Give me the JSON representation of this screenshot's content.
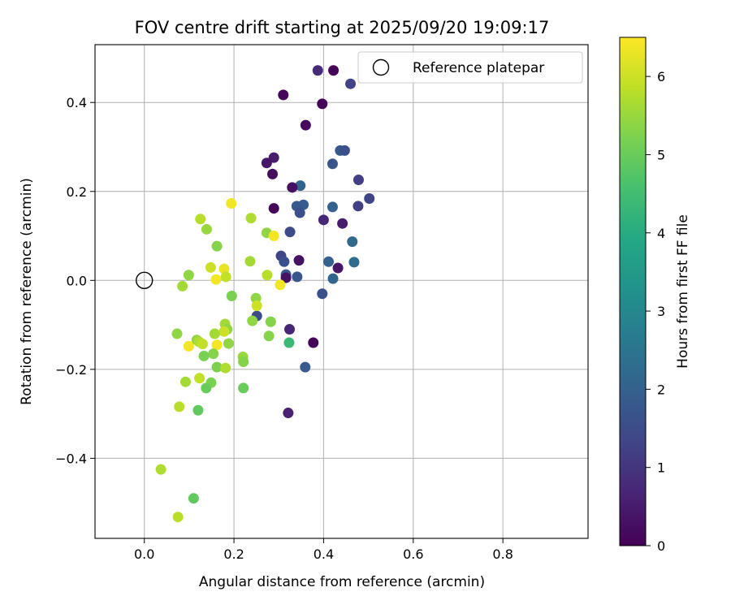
{
  "chart_data": {
    "type": "scatter",
    "title": "FOV centre drift starting at 2025/09/20 19:09:17",
    "xlabel": "Angular distance from reference (arcmin)",
    "ylabel": "Rotation from reference (arcmin)",
    "xlim": [
      -0.11,
      0.99
    ],
    "ylim": [
      -0.58,
      0.53
    ],
    "x_ticks": [
      0.0,
      0.2,
      0.4,
      0.6,
      0.8
    ],
    "x_tick_labels": [
      "0.0",
      "0.2",
      "0.4",
      "0.6",
      "0.8"
    ],
    "y_ticks": [
      -0.4,
      -0.2,
      0.0,
      0.2,
      0.4
    ],
    "y_tick_labels": [
      "−0.4",
      "−0.2",
      "0.0",
      "0.2",
      "0.4"
    ],
    "grid": true,
    "legend": {
      "location": "top-right",
      "entries": [
        {
          "label": "Reference platepar",
          "marker": "open-circle"
        }
      ]
    },
    "reference_point": {
      "x": 0.0,
      "y": 0.0
    },
    "colorbar": {
      "label": "Hours from first FF file",
      "cmap": "viridis",
      "range": [
        0,
        6.5
      ],
      "ticks": [
        0,
        1,
        2,
        3,
        4,
        5,
        6
      ],
      "tick_labels": [
        "0",
        "1",
        "2",
        "3",
        "4",
        "5",
        "6"
      ]
    },
    "points": [
      {
        "x": 0.422,
        "y": 0.472,
        "c": 0.1
      },
      {
        "x": 0.387,
        "y": 0.472,
        "c": 0.8
      },
      {
        "x": 0.46,
        "y": 0.442,
        "c": 1.3
      },
      {
        "x": 0.31,
        "y": 0.417,
        "c": 0.1
      },
      {
        "x": 0.397,
        "y": 0.397,
        "c": 0.1
      },
      {
        "x": 0.36,
        "y": 0.349,
        "c": 0.2
      },
      {
        "x": 0.437,
        "y": 0.292,
        "c": 1.8
      },
      {
        "x": 0.447,
        "y": 0.292,
        "c": 1.6
      },
      {
        "x": 0.289,
        "y": 0.276,
        "c": 0.5
      },
      {
        "x": 0.273,
        "y": 0.264,
        "c": 0.4
      },
      {
        "x": 0.42,
        "y": 0.262,
        "c": 1.7
      },
      {
        "x": 0.286,
        "y": 0.239,
        "c": 0.2
      },
      {
        "x": 0.478,
        "y": 0.226,
        "c": 1.2
      },
      {
        "x": 0.348,
        "y": 0.213,
        "c": 2.1
      },
      {
        "x": 0.33,
        "y": 0.209,
        "c": 0.3
      },
      {
        "x": 0.502,
        "y": 0.184,
        "c": 1.3
      },
      {
        "x": 0.355,
        "y": 0.17,
        "c": 1.9
      },
      {
        "x": 0.34,
        "y": 0.167,
        "c": 1.8
      },
      {
        "x": 0.477,
        "y": 0.167,
        "c": 1.2
      },
      {
        "x": 0.42,
        "y": 0.165,
        "c": 2.0
      },
      {
        "x": 0.289,
        "y": 0.162,
        "c": 0.1
      },
      {
        "x": 0.347,
        "y": 0.152,
        "c": 1.6
      },
      {
        "x": 0.4,
        "y": 0.136,
        "c": 0.7
      },
      {
        "x": 0.442,
        "y": 0.128,
        "c": 0.5
      },
      {
        "x": 0.325,
        "y": 0.109,
        "c": 1.5
      },
      {
        "x": 0.464,
        "y": 0.087,
        "c": 2.2
      },
      {
        "x": 0.305,
        "y": 0.055,
        "c": 1.3
      },
      {
        "x": 0.345,
        "y": 0.045,
        "c": 0.3
      },
      {
        "x": 0.411,
        "y": 0.042,
        "c": 2.0
      },
      {
        "x": 0.468,
        "y": 0.041,
        "c": 2.3
      },
      {
        "x": 0.312,
        "y": 0.042,
        "c": 1.6
      },
      {
        "x": 0.432,
        "y": 0.028,
        "c": 0.4
      },
      {
        "x": 0.316,
        "y": 0.013,
        "c": 1.8
      },
      {
        "x": 0.341,
        "y": 0.008,
        "c": 1.7
      },
      {
        "x": 0.421,
        "y": 0.004,
        "c": 2.1
      },
      {
        "x": 0.316,
        "y": 0.006,
        "c": 0.3
      },
      {
        "x": 0.397,
        "y": -0.03,
        "c": 1.6
      },
      {
        "x": 0.251,
        "y": -0.08,
        "c": 1.5
      },
      {
        "x": 0.324,
        "y": -0.11,
        "c": 0.7
      },
      {
        "x": 0.377,
        "y": -0.14,
        "c": 0.1
      },
      {
        "x": 0.359,
        "y": -0.195,
        "c": 1.8
      },
      {
        "x": 0.321,
        "y": -0.298,
        "c": 0.6
      },
      {
        "x": 0.194,
        "y": 0.173,
        "c": 6.4
      },
      {
        "x": 0.125,
        "y": 0.138,
        "c": 5.8
      },
      {
        "x": 0.238,
        "y": 0.14,
        "c": 5.7
      },
      {
        "x": 0.139,
        "y": 0.115,
        "c": 5.5
      },
      {
        "x": 0.273,
        "y": 0.107,
        "c": 5.4
      },
      {
        "x": 0.289,
        "y": 0.1,
        "c": 6.4
      },
      {
        "x": 0.162,
        "y": 0.077,
        "c": 5.3
      },
      {
        "x": 0.236,
        "y": 0.043,
        "c": 5.6
      },
      {
        "x": 0.148,
        "y": 0.029,
        "c": 6.0
      },
      {
        "x": 0.178,
        "y": 0.026,
        "c": 6.3
      },
      {
        "x": 0.099,
        "y": 0.012,
        "c": 5.4
      },
      {
        "x": 0.274,
        "y": 0.012,
        "c": 5.8
      },
      {
        "x": 0.182,
        "y": 0.008,
        "c": 5.9
      },
      {
        "x": 0.16,
        "y": 0.002,
        "c": 6.4
      },
      {
        "x": 0.303,
        "y": -0.01,
        "c": 6.4
      },
      {
        "x": 0.085,
        "y": -0.013,
        "c": 5.6
      },
      {
        "x": 0.195,
        "y": -0.035,
        "c": 5.2
      },
      {
        "x": 0.249,
        "y": -0.04,
        "c": 5.4
      },
      {
        "x": 0.251,
        "y": -0.057,
        "c": 6.0
      },
      {
        "x": 0.241,
        "y": -0.091,
        "c": 5.4
      },
      {
        "x": 0.282,
        "y": -0.093,
        "c": 5.3
      },
      {
        "x": 0.18,
        "y": -0.098,
        "c": 5.6
      },
      {
        "x": 0.185,
        "y": -0.11,
        "c": 5.4
      },
      {
        "x": 0.178,
        "y": -0.115,
        "c": 6.0
      },
      {
        "x": 0.073,
        "y": -0.12,
        "c": 5.4
      },
      {
        "x": 0.157,
        "y": -0.12,
        "c": 5.6
      },
      {
        "x": 0.278,
        "y": -0.125,
        "c": 5.3
      },
      {
        "x": 0.117,
        "y": -0.134,
        "c": 5.4
      },
      {
        "x": 0.122,
        "y": -0.138,
        "c": 5.7
      },
      {
        "x": 0.323,
        "y": -0.14,
        "c": 4.4
      },
      {
        "x": 0.13,
        "y": -0.143,
        "c": 5.9
      },
      {
        "x": 0.188,
        "y": -0.142,
        "c": 5.4
      },
      {
        "x": 0.099,
        "y": -0.148,
        "c": 6.4
      },
      {
        "x": 0.162,
        "y": -0.145,
        "c": 6.4
      },
      {
        "x": 0.154,
        "y": -0.165,
        "c": 5.3
      },
      {
        "x": 0.133,
        "y": -0.17,
        "c": 5.2
      },
      {
        "x": 0.22,
        "y": -0.172,
        "c": 5.5
      },
      {
        "x": 0.221,
        "y": -0.183,
        "c": 5.3
      },
      {
        "x": 0.162,
        "y": -0.195,
        "c": 5.2
      },
      {
        "x": 0.181,
        "y": -0.197,
        "c": 5.7
      },
      {
        "x": 0.123,
        "y": -0.22,
        "c": 5.9
      },
      {
        "x": 0.092,
        "y": -0.228,
        "c": 5.6
      },
      {
        "x": 0.149,
        "y": -0.23,
        "c": 5.2
      },
      {
        "x": 0.138,
        "y": -0.242,
        "c": 5.0
      },
      {
        "x": 0.221,
        "y": -0.242,
        "c": 5.0
      },
      {
        "x": 0.078,
        "y": -0.284,
        "c": 5.8
      },
      {
        "x": 0.12,
        "y": -0.292,
        "c": 4.9
      },
      {
        "x": 0.037,
        "y": -0.425,
        "c": 5.7
      },
      {
        "x": 0.11,
        "y": -0.49,
        "c": 4.9
      },
      {
        "x": 0.075,
        "y": -0.532,
        "c": 5.8
      }
    ]
  }
}
